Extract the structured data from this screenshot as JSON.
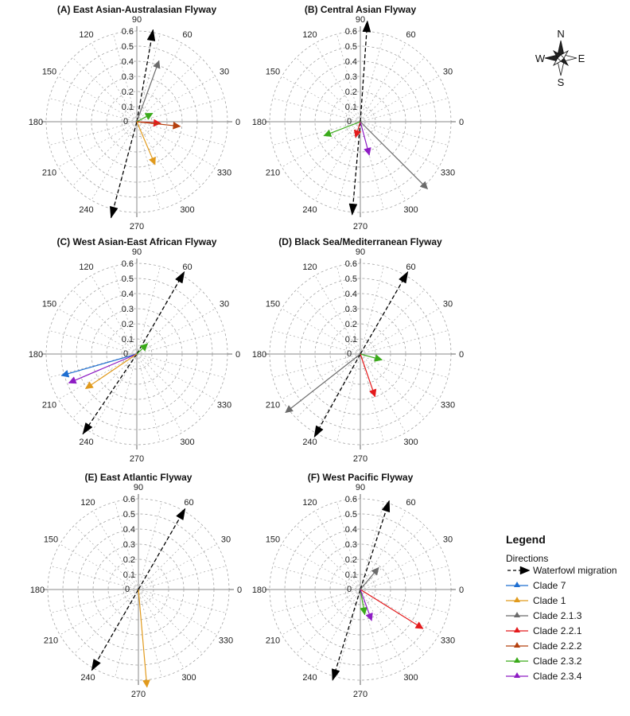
{
  "chart_data": {
    "type": "polar-vectors",
    "radial_ticks": [
      0.1,
      0.2,
      0.3,
      0.4,
      0.5,
      0.6
    ],
    "radial_zero_label": "0",
    "angle_labels": [
      "0",
      "30",
      "60",
      "90",
      "120",
      "150",
      "180",
      "210",
      "240",
      "270",
      "300",
      "330"
    ],
    "series_styles": {
      "Waterfowl migration": "#000000",
      "Clade 7": "#1f6fd1",
      "Clade 1": "#e19a1c",
      "Clade 2.1.3": "#6b6b6b",
      "Clade 2.2.1": "#e41a1c",
      "Clade 2.2.2": "#b5410f",
      "Clade 2.3.2": "#3aaa1a",
      "Clade 2.3.4": "#8e1cc4"
    },
    "panels": [
      {
        "title": "(A) East Asian-Australasian Flyway",
        "vectors": [
          {
            "series": "Waterfowl migration",
            "angle": 80,
            "r": 0.62,
            "style": "dashed"
          },
          {
            "series": "Waterfowl migration",
            "angle": 255,
            "r": 0.66,
            "style": "dashed"
          },
          {
            "series": "Clade 2.1.3",
            "angle": 70,
            "r": 0.43
          },
          {
            "series": "Clade 2.3.2",
            "angle": 28,
            "r": 0.12
          },
          {
            "series": "Clade 2.2.1",
            "angle": 356,
            "r": 0.16
          },
          {
            "series": "Clade 2.2.2",
            "angle": 354,
            "r": 0.29
          },
          {
            "series": "Clade 1",
            "angle": 293,
            "r": 0.31
          }
        ]
      },
      {
        "title": "(B) Central Asian Flyway",
        "vectors": [
          {
            "series": "Waterfowl migration",
            "angle": 86,
            "r": 0.67,
            "style": "dashed"
          },
          {
            "series": "Waterfowl migration",
            "angle": 265,
            "r": 0.62,
            "style": "dashed"
          },
          {
            "series": "Clade 2.3.2",
            "angle": 201,
            "r": 0.26
          },
          {
            "series": "Clade 2.2.1",
            "angle": 253,
            "r": 0.11
          },
          {
            "series": "Clade 2.3.4",
            "angle": 285,
            "r": 0.23
          },
          {
            "series": "Clade 2.1.3",
            "angle": 315,
            "r": 0.63
          }
        ]
      },
      {
        "title": "(C) West Asian-East African Flyway",
        "vectors": [
          {
            "series": "Waterfowl migration",
            "angle": 60,
            "r": 0.63,
            "style": "dashed"
          },
          {
            "series": "Waterfowl migration",
            "angle": 236,
            "r": 0.64,
            "style": "dashed"
          },
          {
            "series": "Clade 2.3.2",
            "angle": 44,
            "r": 0.1
          },
          {
            "series": "Clade 7",
            "angle": 196,
            "r": 0.52
          },
          {
            "series": "Clade 2.3.4",
            "angle": 203,
            "r": 0.49
          },
          {
            "series": "Clade 1",
            "angle": 214,
            "r": 0.41
          }
        ]
      },
      {
        "title": "(D) Black Sea/Mediterranean Flyway",
        "vectors": [
          {
            "series": "Waterfowl migration",
            "angle": 60,
            "r": 0.63,
            "style": "dashed"
          },
          {
            "series": "Waterfowl migration",
            "angle": 241,
            "r": 0.63,
            "style": "dashed"
          },
          {
            "series": "Clade 2.3.2",
            "angle": 345,
            "r": 0.15
          },
          {
            "series": "Clade 2.2.1",
            "angle": 289,
            "r": 0.3
          },
          {
            "series": "Clade 2.1.3",
            "angle": 218,
            "r": 0.63
          }
        ]
      },
      {
        "title": "(E) East Atlantic Flyway",
        "vectors": [
          {
            "series": "Waterfowl migration",
            "angle": 60,
            "r": 0.62,
            "style": "dashed"
          },
          {
            "series": "Waterfowl migration",
            "angle": 240,
            "r": 0.62,
            "style": "dashed"
          },
          {
            "series": "Clade 1",
            "angle": 275,
            "r": 0.65
          }
        ]
      },
      {
        "title": "(F) West Pacific Flyway",
        "vectors": [
          {
            "series": "Waterfowl migration",
            "angle": 72,
            "r": 0.62,
            "style": "dashed"
          },
          {
            "series": "Waterfowl migration",
            "angle": 253,
            "r": 0.63,
            "style": "dashed"
          },
          {
            "series": "Clade 2.1.3",
            "angle": 50,
            "r": 0.19
          },
          {
            "series": "Clade 2.2.1",
            "angle": 328,
            "r": 0.49
          },
          {
            "series": "Clade 2.3.2",
            "angle": 280,
            "r": 0.17
          },
          {
            "series": "Clade 2.3.4",
            "angle": 290,
            "r": 0.22
          }
        ]
      }
    ]
  },
  "legend": {
    "title": "Legend",
    "subtitle": "Directions",
    "items": [
      {
        "label": "Waterfowl migration",
        "color": "#000000",
        "style": "dashed"
      },
      {
        "label": "Clade 7",
        "color": "#1f6fd1",
        "style": "solid"
      },
      {
        "label": "Clade 1",
        "color": "#e19a1c",
        "style": "solid"
      },
      {
        "label": "Clade 2.1.3",
        "color": "#6b6b6b",
        "style": "solid"
      },
      {
        "label": "Clade 2.2.1",
        "color": "#e41a1c",
        "style": "solid"
      },
      {
        "label": "Clade 2.2.2",
        "color": "#b5410f",
        "style": "solid"
      },
      {
        "label": "Clade 2.3.2",
        "color": "#3aaa1a",
        "style": "solid"
      },
      {
        "label": "Clade 2.3.4",
        "color": "#8e1cc4",
        "style": "solid"
      }
    ]
  },
  "compass": {
    "n": "N",
    "e": "E",
    "s": "S",
    "w": "W"
  }
}
